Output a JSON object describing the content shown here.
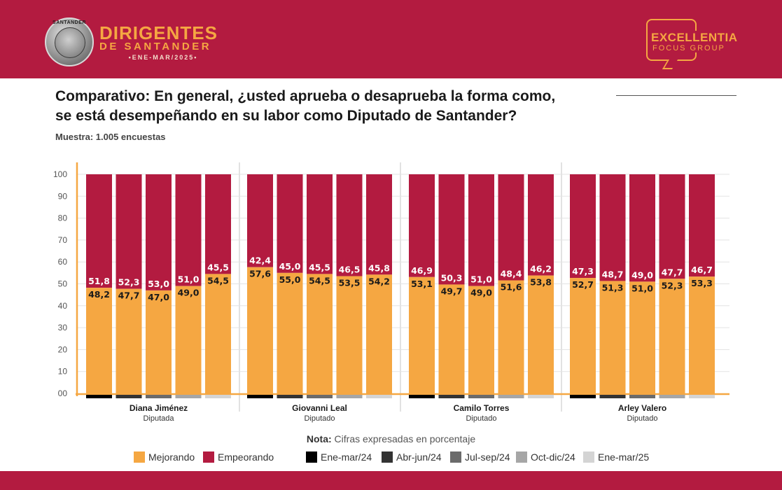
{
  "header": {
    "brand_title": "DIRIGENTES",
    "brand_subtitle": "DE SANTANDER",
    "brand_period": "•ENE-MAR/2025•",
    "seal_text": "SANTANDER",
    "company_name": "EXCELLENTIA",
    "company_sub": "FOCUS GROUP"
  },
  "title_line1": "Comparativo: En general, ¿usted aprueba o desaprueba la forma como,",
  "title_line2": "se está desempeñando en su labor como Diputado de Santander?",
  "sample": "Muestra: 1.005 encuestas",
  "note_label": "Nota:",
  "note_text": "Cifras expresadas en porcentaje",
  "colors": {
    "mejorando": "#f5a742",
    "empeorando": "#b31b40",
    "header": "#b31b40"
  },
  "legend": {
    "metrics": [
      {
        "label": "Mejorando",
        "color": "#f5a742"
      },
      {
        "label": "Empeorando",
        "color": "#b31b40"
      }
    ],
    "periods": [
      {
        "label": "Ene-mar/24",
        "color": "#000000"
      },
      {
        "label": "Abr-jun/24",
        "color": "#333333"
      },
      {
        "label": "Jul-sep/24",
        "color": "#6b6b6b"
      },
      {
        "label": "Oct-dic/24",
        "color": "#a6a6a6"
      },
      {
        "label": "Ene-mar/25",
        "color": "#d4d4d4"
      }
    ]
  },
  "chart_data": {
    "type": "bar",
    "stacked": true,
    "y_ticks": [
      "00",
      "10",
      "20",
      "30",
      "40",
      "50",
      "60",
      "70",
      "80",
      "90",
      "100"
    ],
    "ylim": [
      0,
      100
    ],
    "grid": true,
    "groups": [
      {
        "name": "Diana Jiménez",
        "role": "Diputada",
        "mejorando": [
          "48,2",
          "47,7",
          "47,0",
          "49,0",
          "54,5"
        ],
        "empeorando": [
          "51,8",
          "52,3",
          "53,0",
          "51,0",
          "45,5"
        ]
      },
      {
        "name": "Giovanni Leal",
        "role": "Diputado",
        "mejorando": [
          "57,6",
          "55,0",
          "54,5",
          "53,5",
          "54,2"
        ],
        "empeorando": [
          "42,4",
          "45,0",
          "45,5",
          "46,5",
          "45,8"
        ]
      },
      {
        "name": "Camilo Torres",
        "role": "Diputado",
        "mejorando": [
          "53,1",
          "49,7",
          "49,0",
          "51,6",
          "53,8"
        ],
        "empeorando": [
          "46,9",
          "50,3",
          "51,0",
          "48,4",
          "46,2"
        ]
      },
      {
        "name": "Arley Valero",
        "role": "Diputado",
        "mejorando": [
          "52,7",
          "51,3",
          "51,0",
          "52,3",
          "53,3"
        ],
        "empeorando": [
          "47,3",
          "48,7",
          "49,0",
          "47,7",
          "46,7"
        ]
      }
    ]
  }
}
